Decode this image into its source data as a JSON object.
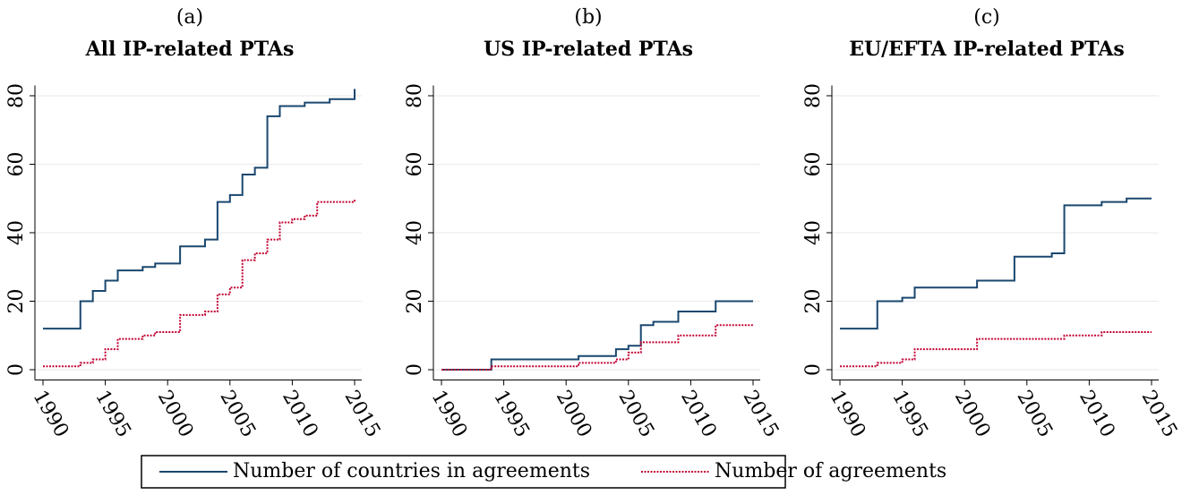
{
  "chart_data": [
    {
      "type": "step",
      "panel": "(a)",
      "title": "All IP-related PTAs",
      "x": [
        1990,
        1991,
        1992,
        1993,
        1994,
        1995,
        1996,
        1997,
        1998,
        1999,
        2000,
        2001,
        2002,
        2003,
        2004,
        2005,
        2006,
        2007,
        2008,
        2009,
        2010,
        2011,
        2012,
        2013,
        2014,
        2015
      ],
      "series": [
        {
          "color": "#1a476f",
          "dash": "none",
          "values": [
            12,
            12,
            12,
            20,
            23,
            26,
            29,
            29,
            30,
            31,
            31,
            36,
            36,
            38,
            49,
            51,
            57,
            59,
            74,
            77,
            77,
            78,
            78,
            79,
            79,
            82
          ]
        },
        {
          "color": "#c10534",
          "dash": "2 1.5",
          "values": [
            1,
            1,
            1,
            2,
            3,
            6,
            9,
            9,
            10,
            11,
            11,
            16,
            16,
            17,
            22,
            24,
            32,
            34,
            38,
            43,
            44,
            45,
            49,
            49,
            49,
            50
          ]
        }
      ],
      "xlim": [
        1990,
        2015
      ],
      "xticks": [
        1990,
        1995,
        2000,
        2005,
        2010,
        2015
      ],
      "ylim": [
        -3,
        83
      ],
      "yticks": [
        0,
        20,
        40,
        60,
        80
      ],
      "grid": true
    },
    {
      "type": "step",
      "panel": "(b)",
      "title": "US IP-related PTAs",
      "x": [
        1990,
        1991,
        1992,
        1993,
        1994,
        1995,
        1996,
        1997,
        1998,
        1999,
        2000,
        2001,
        2002,
        2003,
        2004,
        2005,
        2006,
        2007,
        2008,
        2009,
        2010,
        2011,
        2012,
        2013,
        2014,
        2015
      ],
      "series": [
        {
          "color": "#1a476f",
          "dash": "none",
          "values": [
            0,
            0,
            0,
            0,
            3,
            3,
            3,
            3,
            3,
            3,
            3,
            4,
            4,
            4,
            6,
            7,
            13,
            14,
            14,
            17,
            17,
            17,
            20,
            20,
            20,
            20
          ]
        },
        {
          "color": "#c10534",
          "dash": "2 1.5",
          "values": [
            0,
            0,
            0,
            0,
            1,
            1,
            1,
            1,
            1,
            1,
            1,
            2,
            2,
            2,
            3,
            5,
            8,
            8,
            8,
            10,
            10,
            10,
            13,
            13,
            13,
            13
          ]
        }
      ],
      "xlim": [
        1990,
        2015
      ],
      "xticks": [
        1990,
        1995,
        2000,
        2005,
        2010,
        2015
      ],
      "ylim": [
        -3,
        83
      ],
      "yticks": [
        0,
        20,
        40,
        60,
        80
      ],
      "grid": true
    },
    {
      "type": "step",
      "panel": "(c)",
      "title": "EU/EFTA IP-related PTAs",
      "x": [
        1990,
        1991,
        1992,
        1993,
        1994,
        1995,
        1996,
        1997,
        1998,
        1999,
        2000,
        2001,
        2002,
        2003,
        2004,
        2005,
        2006,
        2007,
        2008,
        2009,
        2010,
        2011,
        2012,
        2013,
        2014,
        2015
      ],
      "series": [
        {
          "color": "#1a476f",
          "dash": "none",
          "values": [
            12,
            12,
            12,
            20,
            20,
            21,
            24,
            24,
            24,
            24,
            24,
            26,
            26,
            26,
            33,
            33,
            33,
            34,
            48,
            48,
            48,
            49,
            49,
            50,
            50,
            50
          ]
        },
        {
          "color": "#c10534",
          "dash": "2 1.5",
          "values": [
            1,
            1,
            1,
            2,
            2,
            3,
            6,
            6,
            6,
            6,
            6,
            9,
            9,
            9,
            9,
            9,
            9,
            9,
            10,
            10,
            10,
            11,
            11,
            11,
            11,
            11
          ]
        }
      ],
      "xlim": [
        1990,
        2015
      ],
      "xticks": [
        1990,
        1995,
        2000,
        2005,
        2010,
        2015
      ],
      "ylim": [
        -3,
        83
      ],
      "yticks": [
        0,
        20,
        40,
        60,
        80
      ],
      "grid": true
    }
  ],
  "legend": [
    {
      "name": "Number of countries in agreements",
      "color": "#1a476f",
      "dash": "none"
    },
    {
      "name": "Number of agreements",
      "color": "#c10534",
      "dash": "2 1.5"
    }
  ]
}
